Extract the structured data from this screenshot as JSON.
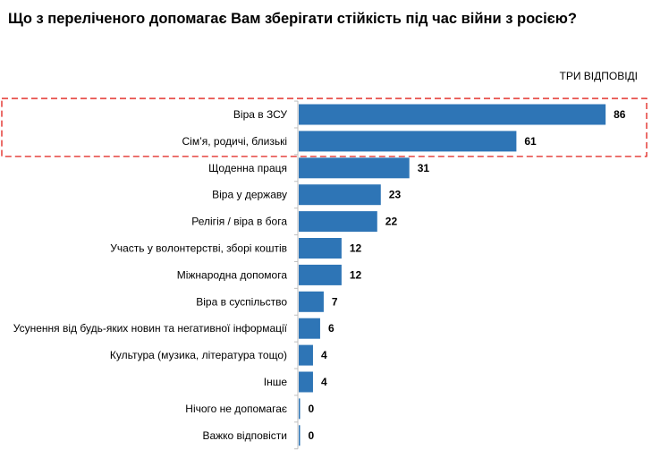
{
  "chart_data": {
    "type": "bar",
    "orientation": "horizontal",
    "title": "Що з переліченого допомагає Вам зберігати стійкість під час війни з росією?",
    "subtitle": "ТРИ ВІДПОВІДІ",
    "categories": [
      "Віра в ЗСУ",
      "Сім’я, родичі, близькі",
      "Щоденна праця",
      "Віра у державу",
      "Релігія / віра в бога",
      "Участь у волонтерстві, зборі коштів",
      "Міжнародна допомога",
      "Віра в суспільство",
      "Усунення від будь-яких новин та негативної інформації",
      "Культура (музика, література тощо)",
      "Інше",
      "Нічого не допомагає",
      "Важко відповісти"
    ],
    "values": [
      86,
      61,
      31,
      23,
      22,
      12,
      12,
      7,
      6,
      4,
      4,
      0,
      0
    ],
    "highlighted": [
      "Віра в ЗСУ",
      "Сім’я, родичі, близькі"
    ],
    "xlim": [
      0,
      100
    ],
    "grid": false,
    "bar_color": "#2E75B6",
    "highlight_color": "#E0201B"
  }
}
